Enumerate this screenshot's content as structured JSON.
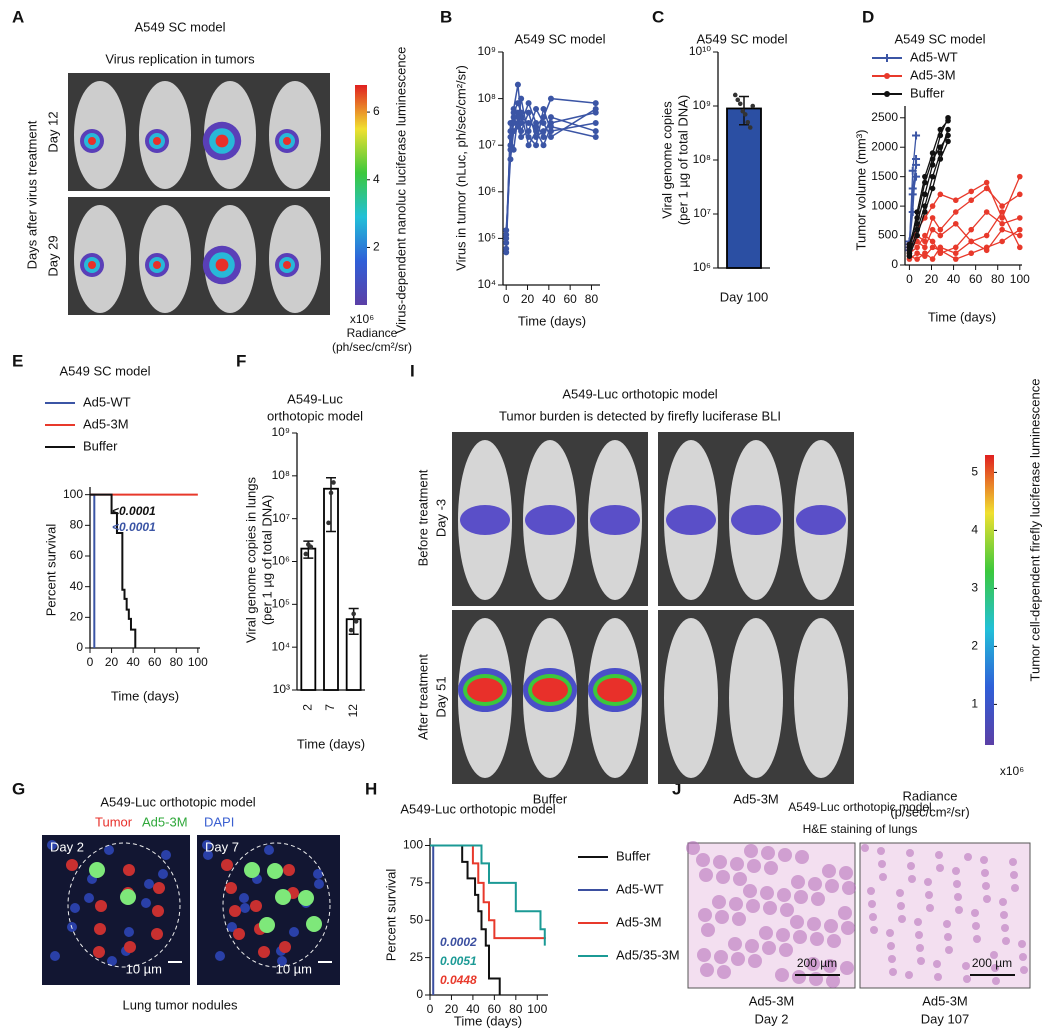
{
  "panel_letters": [
    "A",
    "B",
    "C",
    "D",
    "E",
    "F",
    "G",
    "H",
    "I",
    "J"
  ],
  "chart_data": [
    {
      "type": "line",
      "title": "A549 SC model",
      "xlabel": "Time (days)",
      "ylabel": "Virus in tumor (nLuc, ph/sec/cm²/sr)",
      "log_y": true,
      "x": [
        0,
        4,
        7,
        11,
        14,
        21,
        28,
        35,
        42,
        84
      ],
      "series": [
        {
          "color": "#3b55a5",
          "values": [
            100000,
            20000000,
            60000000,
            200000000,
            40000000,
            30000000,
            25000000,
            40000000,
            100000000,
            80000000
          ]
        },
        {
          "color": "#3b55a5",
          "values": [
            60000,
            10000000,
            30000000,
            50000000,
            20000000,
            50000000,
            15000000,
            20000000,
            30000000,
            50000000
          ]
        },
        {
          "color": "#3b55a5",
          "values": [
            150000,
            5000000,
            20000000,
            30000000,
            100000000,
            15000000,
            10000000,
            60000000,
            20000000,
            30000000
          ]
        },
        {
          "color": "#3b55a5",
          "values": [
            80000,
            15000000,
            8000000,
            40000000,
            30000000,
            80000000,
            30000000,
            15000000,
            40000000,
            20000000
          ]
        },
        {
          "color": "#3b55a5",
          "values": [
            50000,
            30000000,
            40000000,
            25000000,
            15000000,
            20000000,
            60000000,
            30000000,
            15000000,
            60000000
          ]
        },
        {
          "color": "#3b55a5",
          "values": [
            120000,
            8000000,
            50000000,
            80000000,
            50000000,
            10000000,
            20000000,
            10000000,
            25000000,
            15000000
          ]
        }
      ],
      "xlim": [
        -3,
        88
      ],
      "xticks": [
        0,
        20,
        40,
        60,
        80
      ],
      "ylim": [
        10000,
        1000000000
      ],
      "yticks": [
        {
          "value": 10000,
          "label": "10⁴"
        },
        {
          "value": 100000,
          "label": "10⁵"
        },
        {
          "value": 1000000,
          "label": "10⁶"
        },
        {
          "value": 10000000,
          "label": "10⁷"
        },
        {
          "value": 100000000,
          "label": "10⁸"
        },
        {
          "value": 1000000000,
          "label": "10⁹"
        }
      ]
    },
    {
      "type": "bar",
      "title": "A549 SC model",
      "ylabel": [
        "Viral genome copies",
        "(per 1 µg of total DNA)"
      ],
      "log_y": true,
      "categories": [
        "Day 100"
      ],
      "values": [
        900000000
      ],
      "error_low": [
        450000000
      ],
      "error_high": [
        1500000000
      ],
      "points": [
        [
          1600000000,
          1300000000,
          1100000000,
          800000000,
          700000000,
          500000000,
          400000000,
          1000000000
        ]
      ],
      "color": "#2b4fa3",
      "edge_color": "#000000",
      "ylim": [
        1000000,
        10000000000
      ],
      "yticks": [
        {
          "value": 1000000,
          "label": "10⁶"
        },
        {
          "value": 10000000,
          "label": "10⁷"
        },
        {
          "value": 100000000,
          "label": "10⁸"
        },
        {
          "value": 1000000000,
          "label": "10⁹"
        },
        {
          "value": 10000000000,
          "label": "10¹⁰"
        }
      ]
    },
    {
      "type": "spaghetti",
      "title": "A549 SC model",
      "xlabel": "Time (days)",
      "ylabel": "Tumor volume (mm³)",
      "series": [
        {
          "name": "Ad5-WT",
          "color": "#3b55a5",
          "marker": "plus",
          "x": [
            0,
            3,
            6
          ],
          "lines": [
            [
              400,
              1300,
              1700
            ],
            [
              300,
              1600,
              2200
            ],
            [
              350,
              900,
              1800
            ],
            [
              250,
              1200,
              1500
            ]
          ]
        },
        {
          "name": "Ad5-3M",
          "color": "#e8392b",
          "marker": "circle",
          "x": [
            0,
            7,
            14,
            21,
            28,
            42,
            56,
            70,
            84,
            100
          ],
          "lines": [
            [
              300,
              500,
              400,
              800,
              600,
              900,
              1100,
              1300,
              1000,
              1200
            ],
            [
              200,
              300,
              500,
              400,
              200,
              300,
              600,
              900,
              700,
              800
            ],
            [
              350,
              600,
              800,
              1000,
              1200,
              1100,
              1250,
              1400,
              800,
              1500
            ],
            [
              100,
              200,
              150,
              300,
              250,
              100,
              200,
              300,
              400,
              600
            ],
            [
              250,
              400,
              300,
              600,
              500,
              700,
              400,
              500,
              900,
              300
            ],
            [
              150,
              100,
              200,
              100,
              300,
              200,
              400,
              250,
              600,
              500
            ]
          ]
        },
        {
          "name": "Buffer",
          "color": "#111111",
          "marker": "circle",
          "x": [
            0,
            7,
            14,
            21,
            28,
            35
          ],
          "lines": [
            [
              300,
              700,
              1200,
              1700,
              2200,
              2500
            ],
            [
              200,
              600,
              1000,
              1500,
              1900,
              2300
            ],
            [
              150,
              500,
              900,
              1300,
              1800,
              2100
            ],
            [
              250,
              900,
              1500,
              1900,
              2300,
              2450
            ],
            [
              350,
              800,
              1400,
              1800,
              2000,
              2200
            ]
          ]
        }
      ],
      "xlim": [
        -4,
        102
      ],
      "xticks": [
        0,
        20,
        40,
        60,
        80,
        100
      ],
      "ylim": [
        0,
        2700
      ],
      "yticks": [
        0,
        500,
        1000,
        1500,
        2000,
        2500
      ]
    },
    {
      "type": "survival",
      "title": "A549 SC model",
      "xlabel": "Time (days)",
      "ylabel": "Percent survival",
      "series": [
        {
          "name": "Ad5-WT",
          "color": "#3b55a5",
          "x": [
            0,
            4
          ],
          "values": [
            100,
            0
          ]
        },
        {
          "name": "Ad5-3M",
          "color": "#e8392b",
          "x": [
            0,
            100
          ],
          "values": [
            100,
            100
          ]
        },
        {
          "name": "Buffer",
          "color": "#111111",
          "x": [
            0,
            20,
            25,
            30,
            32,
            34,
            36,
            38,
            42
          ],
          "values": [
            100,
            88,
            75,
            38,
            32,
            25,
            19,
            12,
            0
          ]
        }
      ],
      "annotations": [
        {
          "text": "<0.0001",
          "color": "#111111"
        },
        {
          "text": "<0.0001",
          "color": "#3b55a5"
        }
      ],
      "xlim": [
        0,
        102
      ],
      "xticks": [
        0,
        20,
        40,
        60,
        80,
        100
      ],
      "ylim": [
        0,
        105
      ],
      "yticks": [
        0,
        20,
        40,
        60,
        80,
        100
      ]
    },
    {
      "type": "bar",
      "title": [
        "A549-Luc",
        "orthotopic model"
      ],
      "xlabel": "Time (days)",
      "ylabel": [
        "Viral genome copies in lungs",
        "(per 1 µg of total DNA)"
      ],
      "log_y": true,
      "categories": [
        "2",
        "7",
        "12"
      ],
      "values": [
        2000000,
        50000000,
        45000
      ],
      "error_low": [
        1200000,
        5000000,
        20000
      ],
      "error_high": [
        3000000,
        90000000,
        80000
      ],
      "points": [
        [
          1500000,
          2500000,
          2200000
        ],
        [
          8000000,
          40000000,
          70000000
        ],
        [
          25000,
          60000,
          40000
        ]
      ],
      "color": "#ffffff",
      "edge_color": "#000000",
      "ylim": [
        1000,
        1000000000
      ],
      "yticks": [
        {
          "value": 1000,
          "label": "10³"
        },
        {
          "value": 10000,
          "label": "10⁴"
        },
        {
          "value": 100000,
          "label": "10⁵"
        },
        {
          "value": 1000000,
          "label": "10⁶"
        },
        {
          "value": 10000000,
          "label": "10⁷"
        },
        {
          "value": 100000000,
          "label": "10⁸"
        },
        {
          "value": 1000000000,
          "label": "10⁹"
        }
      ]
    },
    {
      "type": "survival",
      "title": "A549-Luc orthotopic model",
      "xlabel": "Time (days)",
      "ylabel": "Percent survival",
      "series": [
        {
          "name": "Buffer",
          "color": "#111111",
          "x": [
            0,
            30,
            35,
            42,
            45,
            48,
            52,
            55,
            65
          ],
          "values": [
            100,
            89,
            78,
            67,
            56,
            44,
            33,
            11,
            0
          ]
        },
        {
          "name": "Ad5-WT",
          "color": "#3b4fa0",
          "x": [
            0,
            3
          ],
          "values": [
            100,
            0
          ]
        },
        {
          "name": "Ad5-3M",
          "color": "#e8392b",
          "x": [
            0,
            40,
            45,
            50,
            55,
            60,
            108
          ],
          "values": [
            100,
            88,
            75,
            62,
            50,
            38,
            38
          ]
        },
        {
          "name": "Ad5/35-3M",
          "color": "#1b9a95",
          "x": [
            0,
            48,
            55,
            80,
            103,
            107
          ],
          "values": [
            100,
            88,
            75,
            56,
            44,
            33
          ]
        }
      ],
      "annotations": [
        {
          "text": "0.0002",
          "color": "#3b4fa0"
        },
        {
          "text": "0.0051",
          "color": "#1b9a95"
        },
        {
          "text": "0.0448",
          "color": "#e8392b"
        }
      ],
      "xlim": [
        0,
        110
      ],
      "xticks": [
        0,
        20,
        40,
        60,
        80,
        100
      ],
      "ylim": [
        0,
        105
      ],
      "yticks": [
        0,
        25,
        50,
        75,
        100
      ]
    }
  ],
  "image_panels": {
    "A": {
      "title": "A549 SC model",
      "subtitle": "Virus replication in tumors",
      "row_group_label": "Days after virus treatment",
      "rows": [
        "Day 12",
        "Day 29"
      ],
      "colorbar": {
        "title": "Virus-dependent nanoluc luciferase luminescence",
        "range": [
          0.3,
          6.8
        ],
        "ticks": [
          2,
          4,
          6
        ],
        "multiplier": "x10⁶",
        "unit": [
          "Radiance",
          "(ph/sec/cm²/sr)"
        ]
      }
    },
    "G": {
      "title": "A549-Luc orthotopic model",
      "legend": [
        {
          "text": "Tumor",
          "color": "#e8302a"
        },
        {
          "text": "Ad5-3M",
          "color": "#2fa83a"
        },
        {
          "text": "DAPI",
          "color": "#3a5fd0"
        }
      ],
      "images": [
        {
          "label": "Day 2",
          "scale_bar": "10 µm"
        },
        {
          "label": "Day 7",
          "scale_bar": "10 µm"
        }
      ],
      "caption": "Lung tumor nodules"
    },
    "I": {
      "title": [
        "A549-Luc orthotopic model",
        "Tumor burden is detected by firefly luciferase BLI"
      ],
      "rows": [
        [
          "Before treatment",
          "Day -3"
        ],
        [
          "After treatment",
          "Day 51"
        ]
      ],
      "groups": [
        "Buffer",
        "Ad5-3M"
      ],
      "colorbar": {
        "title": "Tumor cell-dependent firefly luciferase luminescence",
        "range": [
          0.3,
          5.3
        ],
        "ticks": [
          1,
          2,
          3,
          4,
          5
        ],
        "multiplier": "x10⁶",
        "unit": [
          "Radiance",
          "(p/sec/cm²/sr)"
        ]
      }
    },
    "J": {
      "title": [
        "A549-Luc orthotopic model",
        "H&E staining of lungs"
      ],
      "images": [
        {
          "scale_bar": "200 µm",
          "caption": [
            "Ad5-3M",
            "Day 2"
          ]
        },
        {
          "scale_bar": "200 µm",
          "caption": [
            "Ad5-3M",
            "Day 107"
          ]
        }
      ]
    }
  }
}
